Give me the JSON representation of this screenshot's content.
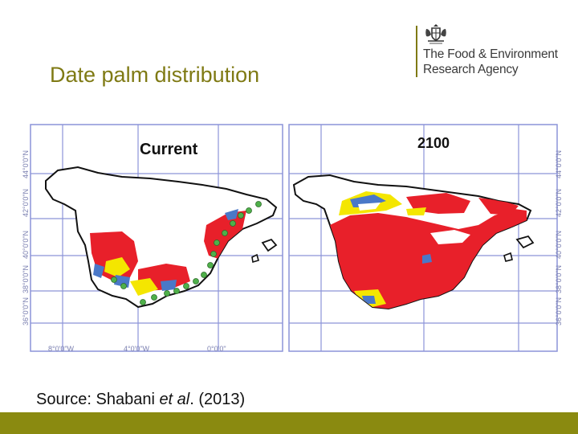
{
  "slide": {
    "title": "Date palm distribution",
    "source_prefix": "Source: Shabani ",
    "source_italic": "et al",
    "source_suffix": ". (2013)"
  },
  "logo": {
    "line1": "The Food & Environment",
    "line2": "Research Agency",
    "crest_icon": "royal-coat-of-arms-icon"
  },
  "maps": [
    {
      "panel_title": "Current",
      "lat_ticks": [
        "36°0'0\"N",
        "38°0'0\"N",
        "40°0'0\"N",
        "42°0'0\"N",
        "44°0'0\"N"
      ],
      "lon_ticks": [
        "8°0'0\"W",
        "4°0'0\"W",
        "0°0'0\""
      ]
    },
    {
      "panel_title": "2100",
      "lat_ticks": [
        "36°0'0\"N",
        "38°0'0\"N",
        "40°0'0\"N",
        "42°0'0\"N",
        "44°0'0\"N"
      ],
      "lon_ticks": []
    }
  ],
  "colors": {
    "title_olive": "#7f7a14",
    "footer_olive": "#8a8a10",
    "suitability_red": "#e8202a",
    "suitability_yellow": "#f4e600",
    "suitability_blue": "#4a78c8",
    "occurrence_green": "#4fb04a",
    "grid_blue": "#8c94d8"
  }
}
